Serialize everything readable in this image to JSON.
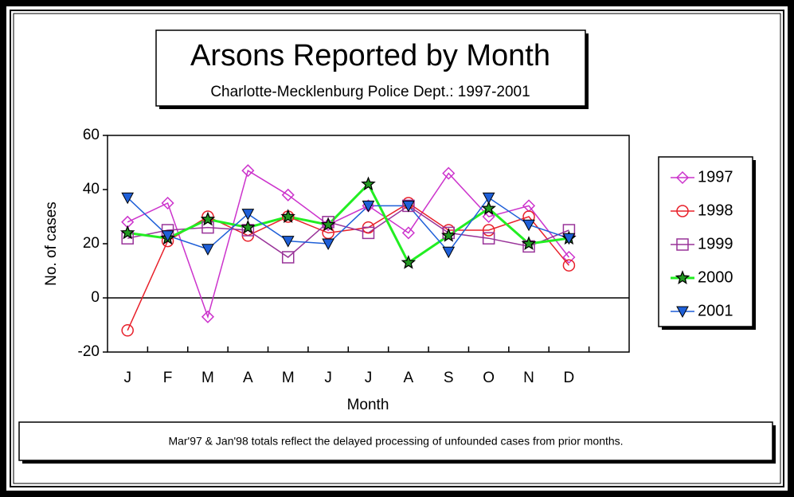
{
  "chart_data": {
    "type": "line",
    "title": "Arsons Reported by Month",
    "subtitle": "Charlotte-Mecklenburg Police Dept.: 1997-2001",
    "x_label": "Month",
    "y_label": "No. of cases",
    "note": "Mar'97 & Jan'98 totals reflect the delayed processing of unfounded cases from prior months.",
    "categories": [
      "J",
      "F",
      "M",
      "A",
      "M",
      "J",
      "J",
      "A",
      "S",
      "O",
      "N",
      "D"
    ],
    "ylim": [
      -20,
      60
    ],
    "yticks": [
      -20,
      0,
      20,
      40,
      60
    ],
    "legend": "right",
    "series": [
      {
        "name": "1997",
        "color": "#cc33cc",
        "marker": "diamond",
        "values": [
          28,
          35,
          -7,
          47,
          38,
          27,
          34,
          24,
          46,
          30,
          34,
          15
        ]
      },
      {
        "name": "1998",
        "color": "#e8202a",
        "marker": "circle",
        "values": [
          -12,
          21,
          30,
          23,
          30,
          24,
          26,
          35,
          25,
          25,
          30,
          12
        ]
      },
      {
        "name": "1999",
        "color": "#993399",
        "marker": "square",
        "values": [
          22,
          25,
          26,
          25,
          15,
          28,
          24,
          34,
          24,
          22,
          19,
          25
        ]
      },
      {
        "name": "2000",
        "color": "#22ee22",
        "marker": "star",
        "values": [
          24,
          22,
          29,
          26,
          30,
          27,
          42,
          13,
          23,
          33,
          20,
          22
        ]
      },
      {
        "name": "2001",
        "color": "#1e5fd8",
        "marker": "triangle",
        "values": [
          37,
          23,
          18,
          31,
          21,
          20,
          34,
          34,
          17,
          37,
          27,
          22
        ]
      }
    ]
  }
}
